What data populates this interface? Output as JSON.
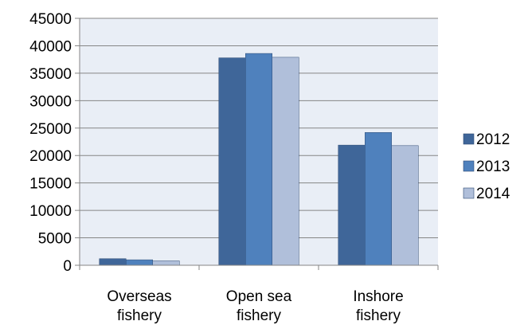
{
  "chart_data": {
    "type": "bar",
    "categories": [
      [
        "Overseas",
        "fishery"
      ],
      [
        "Open sea",
        "fishery"
      ],
      [
        "Inshore",
        "fishery"
      ]
    ],
    "series": [
      {
        "name": "2012",
        "values": [
          1200,
          37800,
          21900
        ],
        "color": "#3f6699"
      },
      {
        "name": "2013",
        "values": [
          1000,
          38600,
          24200
        ],
        "color": "#4f81bd"
      },
      {
        "name": "2014",
        "values": [
          800,
          37900,
          21800
        ],
        "color": "#b0bfda"
      }
    ],
    "ylim": [
      0,
      45000
    ],
    "yticks": [
      "0",
      "5000",
      "10000",
      "15000",
      "20000",
      "25000",
      "30000",
      "35000",
      "40000",
      "45000"
    ],
    "grid": true,
    "legend": "right",
    "plot_background": "#e9eef6"
  }
}
